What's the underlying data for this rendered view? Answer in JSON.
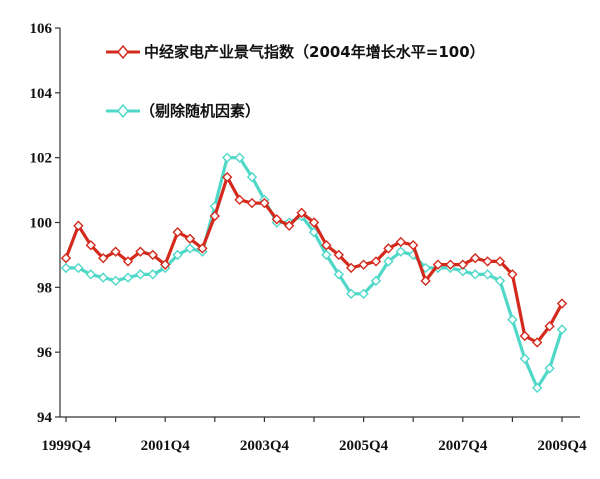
{
  "chart_data": {
    "type": "line",
    "title": "",
    "xlabel": "",
    "ylabel": "",
    "ylim": [
      94,
      106
    ],
    "y_ticks": [
      94,
      96,
      98,
      100,
      102,
      104,
      106
    ],
    "x_tick_labels": [
      "1999Q4",
      "2001Q4",
      "2003Q4",
      "2005Q4",
      "2007Q4",
      "2009Q4"
    ],
    "grid": false,
    "legend_position": "top-left",
    "x": [
      "1999Q4",
      "2000Q1",
      "2000Q2",
      "2000Q3",
      "2000Q4",
      "2001Q1",
      "2001Q2",
      "2001Q3",
      "2001Q4",
      "2002Q1",
      "2002Q2",
      "2002Q3",
      "2002Q4",
      "2003Q1",
      "2003Q2",
      "2003Q3",
      "2003Q4",
      "2004Q1",
      "2004Q2",
      "2004Q3",
      "2004Q4",
      "2005Q1",
      "2005Q2",
      "2005Q3",
      "2005Q4",
      "2006Q1",
      "2006Q2",
      "2006Q3",
      "2006Q4",
      "2007Q1",
      "2007Q2",
      "2007Q3",
      "2007Q4",
      "2008Q1",
      "2008Q2",
      "2008Q3",
      "2008Q4",
      "2009Q1",
      "2009Q2",
      "2009Q3",
      "2009Q4"
    ],
    "series": [
      {
        "name": "中经家电产业景气指数（2004年增长水平=100）",
        "color": "#d42a1e",
        "marker": "diamond",
        "values": [
          98.9,
          99.9,
          99.3,
          98.9,
          99.1,
          98.8,
          99.1,
          99.0,
          98.7,
          99.7,
          99.5,
          99.2,
          100.2,
          101.4,
          100.7,
          100.6,
          100.6,
          100.1,
          99.9,
          100.3,
          100.0,
          99.3,
          99.0,
          98.6,
          98.7,
          98.8,
          99.2,
          99.4,
          99.3,
          98.2,
          98.7,
          98.7,
          98.7,
          98.9,
          98.8,
          98.8,
          98.4,
          96.5,
          96.3,
          96.8,
          97.5
        ]
      },
      {
        "name": "（剔除随机因素）",
        "color": "#4fd8c8",
        "marker": "diamond",
        "values": [
          98.6,
          98.6,
          98.4,
          98.3,
          98.2,
          98.3,
          98.4,
          98.4,
          98.6,
          99.0,
          99.2,
          99.1,
          100.5,
          102.0,
          102.0,
          101.4,
          100.7,
          100.0,
          100.0,
          100.2,
          99.7,
          99.0,
          98.4,
          97.8,
          97.8,
          98.2,
          98.8,
          99.1,
          99.0,
          98.6,
          98.6,
          98.6,
          98.5,
          98.4,
          98.4,
          98.2,
          97.0,
          95.8,
          94.9,
          95.5,
          96.7
        ]
      }
    ]
  }
}
